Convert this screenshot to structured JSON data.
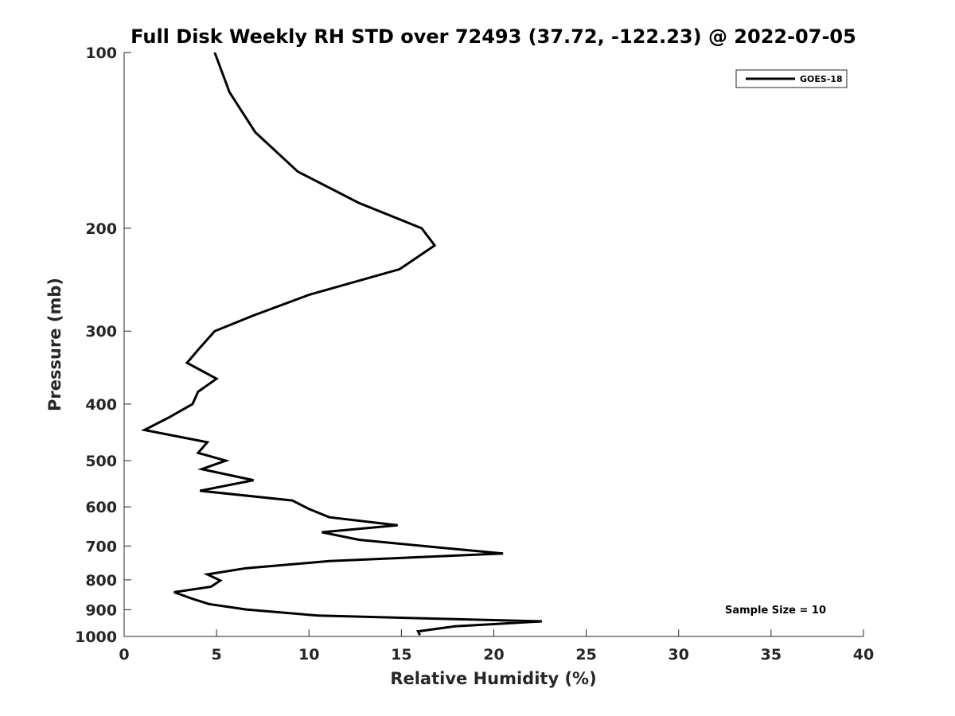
{
  "chart_data": {
    "type": "line",
    "title": "Full Disk Weekly RH STD over 72493 (37.72, -122.23) @ 2022-07-05",
    "xlabel": "Relative Humidity (%)",
    "ylabel": "Pressure (mb)",
    "xlim": [
      0,
      40
    ],
    "ylim": [
      100,
      1000
    ],
    "y_scale": "log",
    "y_reversed": true,
    "x_ticks": [
      "0",
      "5",
      "10",
      "15",
      "20",
      "25",
      "30",
      "35",
      "40"
    ],
    "y_ticks": [
      "100",
      "200",
      "300",
      "400",
      "500",
      "600",
      "700",
      "800",
      "900",
      "1000"
    ],
    "grid": false,
    "legend_position": "top-right",
    "series": [
      {
        "name": "GOES-18",
        "color": "#000000",
        "points": [
          [
            4.9,
            100
          ],
          [
            5.7,
            117
          ],
          [
            7.1,
            137
          ],
          [
            9.4,
            160
          ],
          [
            12.7,
            181
          ],
          [
            16.1,
            200
          ],
          [
            16.8,
            214
          ],
          [
            14.9,
            235
          ],
          [
            10.0,
            260
          ],
          [
            7.0,
            282
          ],
          [
            4.9,
            300
          ],
          [
            4.0,
            323
          ],
          [
            3.4,
            340
          ],
          [
            5.0,
            362
          ],
          [
            4.0,
            381
          ],
          [
            3.7,
            400
          ],
          [
            2.4,
            422
          ],
          [
            1.1,
            443
          ],
          [
            4.5,
            465
          ],
          [
            4.0,
            485
          ],
          [
            5.5,
            500
          ],
          [
            4.2,
            517
          ],
          [
            7.0,
            540
          ],
          [
            4.1,
            563
          ],
          [
            9.1,
            585
          ],
          [
            10.0,
            605
          ],
          [
            11.1,
            625
          ],
          [
            14.8,
            645
          ],
          [
            10.7,
            663
          ],
          [
            12.7,
            683
          ],
          [
            16.6,
            702
          ],
          [
            20.5,
            721
          ],
          [
            11.1,
            743
          ],
          [
            6.6,
            764
          ],
          [
            4.5,
            783
          ],
          [
            5.2,
            802
          ],
          [
            4.7,
            822
          ],
          [
            2.7,
            840
          ],
          [
            3.7,
            862
          ],
          [
            4.6,
            880
          ],
          [
            6.6,
            899
          ],
          [
            10.5,
            921
          ],
          [
            22.6,
            942
          ],
          [
            17.9,
            961
          ],
          [
            15.9,
            980
          ],
          [
            16.0,
            995
          ]
        ]
      }
    ],
    "annotation": "Sample Size = 10"
  }
}
